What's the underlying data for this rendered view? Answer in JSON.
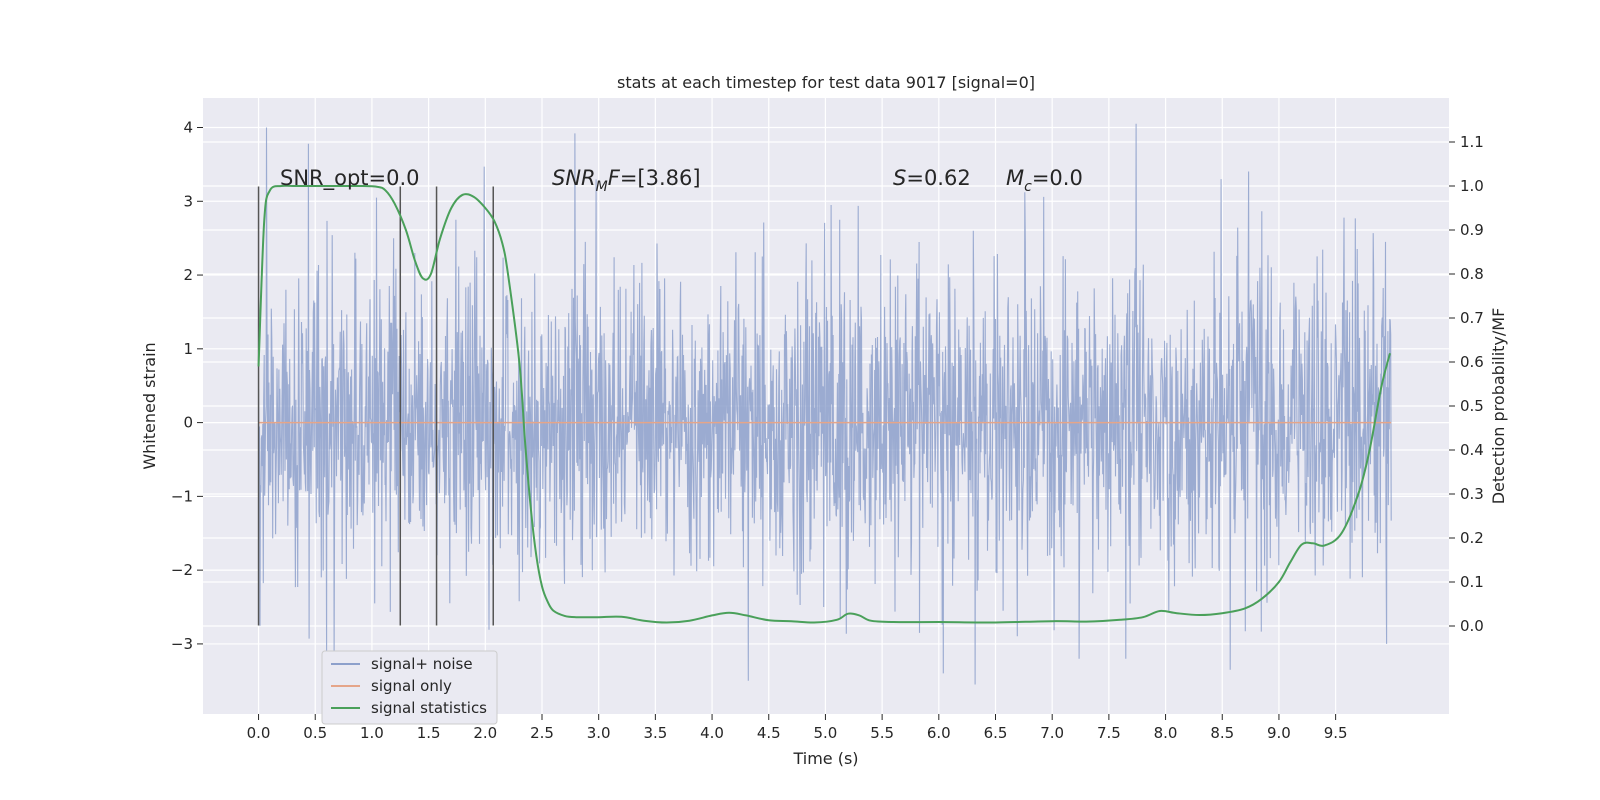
{
  "chart_data": {
    "type": "line",
    "title": "stats at each timestep for test data 9017 [signal=0]",
    "xlabel": "Time (s)",
    "ylabel_left": "Whitened strain",
    "ylabel_right": "Detection probability/MF",
    "xlim": [
      -0.49,
      10.5
    ],
    "ylim_left": [
      -3.95,
      4.4
    ],
    "ylim_right": [
      -0.2,
      1.2
    ],
    "x_ticks": [
      0.0,
      0.5,
      1.0,
      1.5,
      2.0,
      2.5,
      3.0,
      3.5,
      4.0,
      4.5,
      5.0,
      5.5,
      6.0,
      6.5,
      7.0,
      7.5,
      8.0,
      8.5,
      9.0,
      9.5
    ],
    "x_tick_labels": [
      "0.0",
      "0.5",
      "1.0",
      "1.5",
      "2.0",
      "2.5",
      "3.0",
      "3.5",
      "4.0",
      "4.5",
      "5.0",
      "5.5",
      "6.0",
      "6.5",
      "7.0",
      "7.5",
      "8.0",
      "8.5",
      "9.0",
      "9.5"
    ],
    "y_ticks_left": [
      -3,
      -2,
      -1,
      0,
      1,
      2,
      3,
      4
    ],
    "y_tick_labels_left": [
      "−3",
      "−2",
      "−1",
      "0",
      "1",
      "2",
      "3",
      "4"
    ],
    "y_ticks_right": [
      0.0,
      0.1,
      0.2,
      0.3,
      0.4,
      0.5,
      0.6,
      0.7,
      0.8,
      0.9,
      1.0,
      1.1
    ],
    "y_tick_labels_right": [
      "0.0",
      "0.1",
      "0.2",
      "0.3",
      "0.4",
      "0.5",
      "0.6",
      "0.7",
      "0.8",
      "0.9",
      "1.0",
      "1.1"
    ],
    "grid": true,
    "legend_position": "lower-left",
    "series": [
      {
        "name": "signal+ noise",
        "axis": "left",
        "color": "#8da0cb",
        "style": "dense noise, |amplitude| mostly within ±1.45, spikes up to 4.0 / down to -3.5",
        "x_range": [
          0.0,
          9.99
        ],
        "core_band": [
          -1.45,
          1.45
        ],
        "notable_peaks": [
          {
            "x": 0.07,
            "y": 4.0
          },
          {
            "x": 0.44,
            "y": 3.78
          },
          {
            "x": 1.04,
            "y": 3.05
          },
          {
            "x": 1.99,
            "y": 3.47
          },
          {
            "x": 2.79,
            "y": 3.92
          },
          {
            "x": 5.05,
            "y": 2.95
          },
          {
            "x": 7.74,
            "y": 4.05
          },
          {
            "x": 8.49,
            "y": 3.3
          },
          {
            "x": 9.94,
            "y": 2.45
          }
        ],
        "notable_troughs": [
          {
            "x": 0.6,
            "y": -3.15
          },
          {
            "x": 4.32,
            "y": -3.5
          },
          {
            "x": 6.04,
            "y": -3.4
          },
          {
            "x": 6.32,
            "y": -3.55
          },
          {
            "x": 8.57,
            "y": -3.35
          },
          {
            "x": 9.95,
            "y": -3.0
          }
        ]
      },
      {
        "name": "signal only",
        "axis": "left",
        "color": "#e5a589",
        "x": [
          0.0,
          9.99
        ],
        "y": [
          0.0,
          0.0
        ]
      },
      {
        "name": "signal statistics",
        "axis": "right",
        "color": "#4aa05a",
        "x": [
          0.0,
          0.05,
          0.1,
          0.2,
          0.3,
          0.5,
          0.7,
          0.9,
          1.05,
          1.12,
          1.2,
          1.3,
          1.38,
          1.45,
          1.52,
          1.6,
          1.7,
          1.8,
          1.9,
          2.0,
          2.08,
          2.15,
          2.2,
          2.3,
          2.35,
          2.4,
          2.45,
          2.5,
          2.55,
          2.6,
          2.7,
          2.8,
          3.0,
          3.2,
          3.4,
          3.6,
          3.8,
          4.0,
          4.15,
          4.3,
          4.5,
          4.7,
          4.9,
          5.1,
          5.2,
          5.3,
          5.4,
          5.6,
          6.0,
          6.5,
          7.0,
          7.3,
          7.6,
          7.8,
          7.95,
          8.1,
          8.3,
          8.5,
          8.7,
          8.85,
          9.0,
          9.1,
          9.2,
          9.3,
          9.4,
          9.55,
          9.7,
          9.8,
          9.9,
          9.98
        ],
        "y": [
          0.59,
          0.92,
          0.99,
          1.0,
          1.0,
          1.0,
          1.0,
          1.0,
          0.998,
          0.99,
          0.96,
          0.9,
          0.83,
          0.79,
          0.8,
          0.88,
          0.95,
          0.98,
          0.975,
          0.95,
          0.92,
          0.87,
          0.8,
          0.6,
          0.42,
          0.27,
          0.16,
          0.09,
          0.055,
          0.035,
          0.023,
          0.02,
          0.02,
          0.021,
          0.012,
          0.008,
          0.012,
          0.024,
          0.03,
          0.024,
          0.013,
          0.011,
          0.008,
          0.014,
          0.028,
          0.024,
          0.012,
          0.009,
          0.009,
          0.008,
          0.011,
          0.01,
          0.014,
          0.02,
          0.034,
          0.029,
          0.025,
          0.029,
          0.04,
          0.062,
          0.1,
          0.145,
          0.185,
          0.188,
          0.183,
          0.21,
          0.3,
          0.4,
          0.54,
          0.62
        ]
      }
    ],
    "vertical_markers": [
      {
        "x": 0.0,
        "y_range": [
          -2.75,
          3.2
        ]
      },
      {
        "x": 1.25,
        "y_range": [
          -2.75,
          3.2
        ]
      },
      {
        "x": 1.57,
        "y_range": [
          -2.75,
          3.2
        ]
      },
      {
        "x": 2.07,
        "y_range": [
          -2.75,
          3.2
        ]
      }
    ],
    "annotations": {
      "snr_opt": "SNR_opt=0.0",
      "snr_mf": "=[3.86]",
      "s_value": "=0.62",
      "mc_value": "=0.0"
    }
  }
}
